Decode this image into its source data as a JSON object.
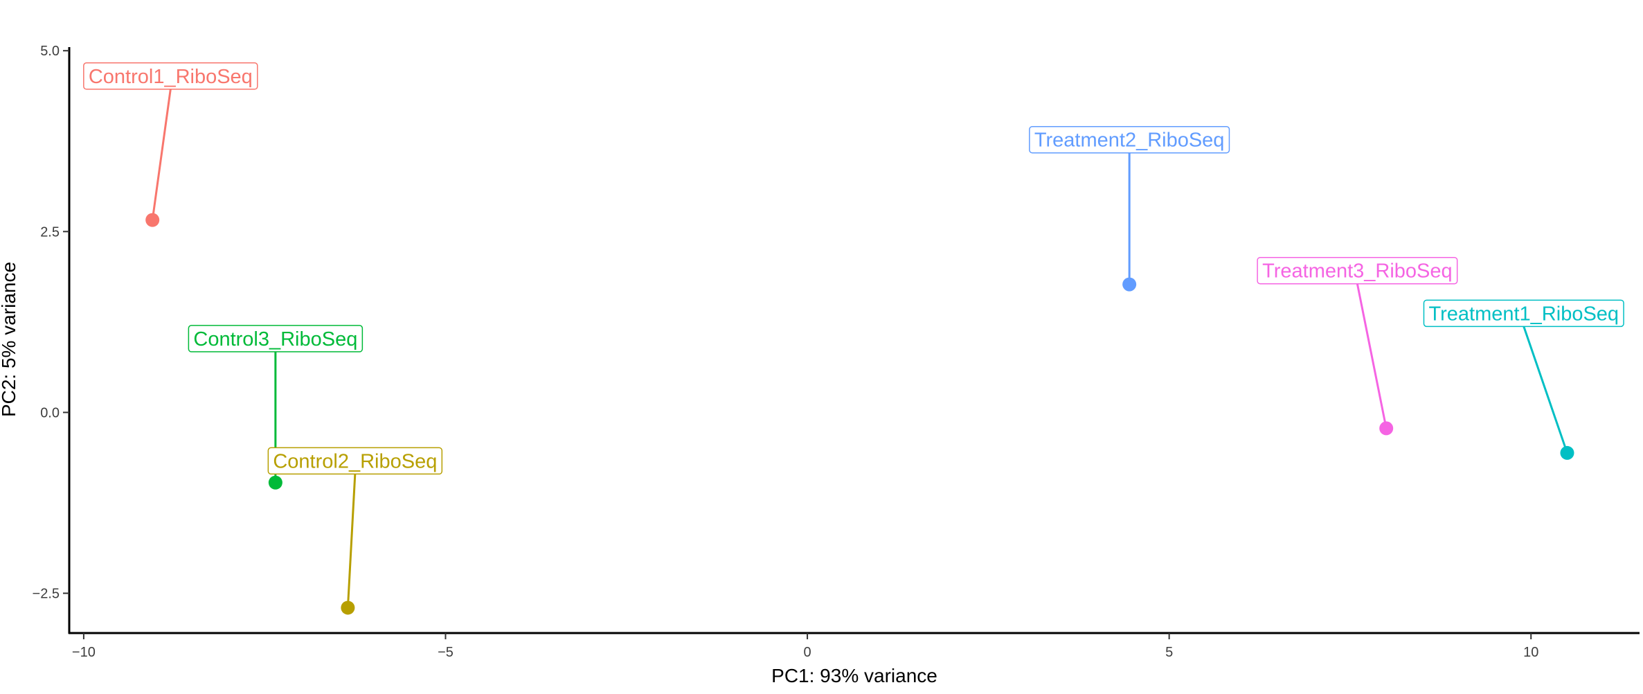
{
  "chart_data": {
    "type": "scatter",
    "title": "",
    "xlabel": "PC1: 93% variance",
    "ylabel": "PC2: 5% variance",
    "xlim": [
      -10.2,
      11.5
    ],
    "ylim": [
      -3.05,
      5.05
    ],
    "xticks": [
      -10,
      -5,
      0,
      5,
      10
    ],
    "xtick_labels": [
      "−10",
      "−5",
      "0",
      "5",
      "10"
    ],
    "yticks": [
      -2.5,
      0,
      2.5,
      5
    ],
    "ytick_labels": [
      "−2.5",
      "0.0",
      "2.5",
      "5.0"
    ],
    "grid": false,
    "legend": "none",
    "points": [
      {
        "label": "Control1_RiboSeq",
        "x": -9.05,
        "y": 2.66,
        "color": "#F8766D",
        "label_x": -8.8,
        "label_y": 4.65
      },
      {
        "label": "Control2_RiboSeq",
        "x": -6.35,
        "y": -2.7,
        "color": "#B79F00",
        "label_x": -6.25,
        "label_y": -0.67
      },
      {
        "label": "Control3_RiboSeq",
        "x": -7.35,
        "y": -0.97,
        "color": "#00BA38",
        "label_x": -7.35,
        "label_y": 1.02
      },
      {
        "label": "Treatment1_RiboSeq",
        "x": 10.5,
        "y": -0.56,
        "color": "#00BFC4",
        "label_x": 9.9,
        "label_y": 1.37
      },
      {
        "label": "Treatment2_RiboSeq",
        "x": 4.45,
        "y": 1.77,
        "color": "#619CFF",
        "label_x": 4.45,
        "label_y": 3.77
      },
      {
        "label": "Treatment3_RiboSeq",
        "x": 8.0,
        "y": -0.22,
        "color": "#F564E3",
        "label_x": 7.6,
        "label_y": 1.96
      }
    ]
  }
}
